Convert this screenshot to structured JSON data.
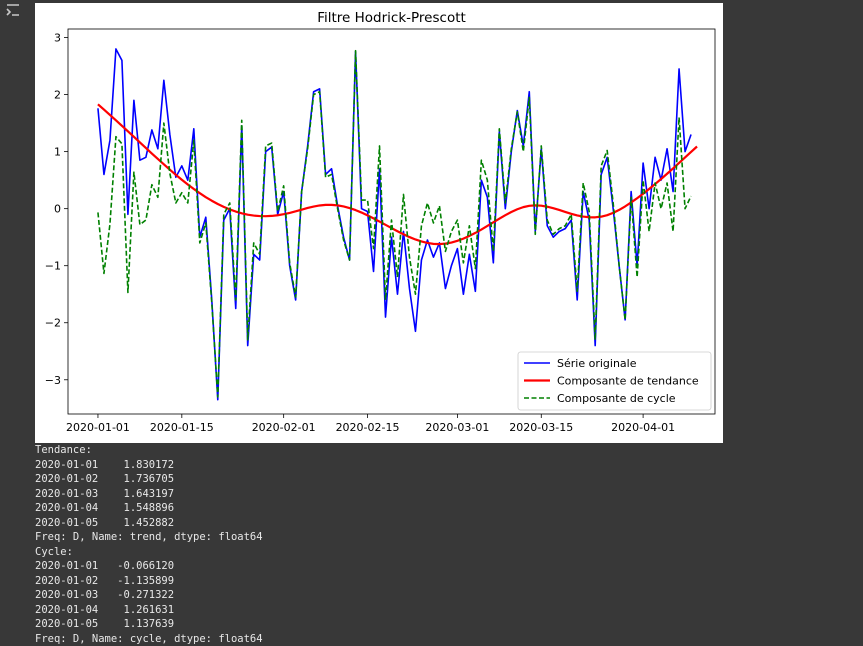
{
  "chart_data": {
    "type": "line",
    "title": "Filtre Hodrick-Prescott",
    "xlabel": "",
    "ylabel": "",
    "x_start": "2020-01-01",
    "x_ticks": [
      "2020-01-01",
      "2020-01-15",
      "2020-02-01",
      "2020-02-15",
      "2020-03-01",
      "2020-03-15",
      "2020-04-01"
    ],
    "y_ticks": [
      -3,
      -2,
      -1,
      0,
      1,
      2,
      3
    ],
    "ylim": [
      -3.6,
      3.15
    ],
    "xlim": [
      "2019-12-27",
      "2020-04-13"
    ],
    "grid": false,
    "legend_position": "lower right",
    "series": [
      {
        "name": "Série originale",
        "color": "#0000ff",
        "style": "solid",
        "values": [
          1.76,
          0.6,
          1.2,
          2.8,
          2.6,
          -0.1,
          1.9,
          0.85,
          0.9,
          1.38,
          1.05,
          2.25,
          1.3,
          0.55,
          0.75,
          0.5,
          1.4,
          -0.5,
          -0.15,
          -1.6,
          -3.35,
          -0.2,
          0.0,
          -1.75,
          1.45,
          -2.4,
          -0.8,
          -0.9,
          1.0,
          1.08,
          -0.1,
          0.3,
          -1.0,
          -1.6,
          0.3,
          1.1,
          2.05,
          2.1,
          0.6,
          0.7,
          0.05,
          -0.5,
          -0.9,
          2.75,
          0.0,
          -0.05,
          -1.1,
          0.7,
          -1.9,
          -0.5,
          -1.5,
          -0.4,
          -1.4,
          -2.15,
          -0.9,
          -0.55,
          -0.85,
          -0.6,
          -1.4,
          -1.0,
          -0.7,
          -1.5,
          -0.8,
          -1.45,
          0.5,
          0.2,
          -0.95,
          1.35,
          0.0,
          1.0,
          1.72,
          1.1,
          2.05,
          -0.4,
          1.05,
          -0.3,
          -0.5,
          -0.4,
          -0.35,
          -0.2,
          -1.6,
          0.3,
          -0.2,
          -2.4,
          0.6,
          0.9,
          0.0,
          -1.0,
          -1.95,
          0.3,
          -1.0,
          0.8,
          0.0,
          0.9,
          0.5,
          1.05,
          0.3,
          2.45,
          1.0,
          1.3
        ]
      },
      {
        "name": "Composante de tendance",
        "color": "#ff0000",
        "style": "solid",
        "values": [
          1.83,
          1.737,
          1.643,
          1.549,
          1.453,
          1.356,
          1.259,
          1.161,
          1.064,
          0.967,
          0.871,
          0.777,
          0.684,
          0.594,
          0.507,
          0.424,
          0.345,
          0.271,
          0.202,
          0.139,
          0.082,
          0.031,
          -0.013,
          -0.05,
          -0.081,
          -0.105,
          -0.121,
          -0.13,
          -0.132,
          -0.127,
          -0.115,
          -0.097,
          -0.074,
          -0.047,
          -0.017,
          0.012,
          0.037,
          0.056,
          0.066,
          0.067,
          0.058,
          0.039,
          0.011,
          -0.025,
          -0.068,
          -0.117,
          -0.17,
          -0.226,
          -0.283,
          -0.34,
          -0.396,
          -0.449,
          -0.498,
          -0.54,
          -0.575,
          -0.601,
          -0.617,
          -0.621,
          -0.613,
          -0.594,
          -0.564,
          -0.525,
          -0.478,
          -0.425,
          -0.366,
          -0.303,
          -0.239,
          -0.175,
          -0.114,
          -0.058,
          -0.01,
          0.027,
          0.05,
          0.058,
          0.052,
          0.034,
          0.008,
          -0.023,
          -0.057,
          -0.09,
          -0.118,
          -0.139,
          -0.151,
          -0.152,
          -0.14,
          -0.114,
          -0.074,
          -0.022,
          0.04,
          0.109,
          0.183,
          0.262,
          0.345,
          0.431,
          0.52,
          0.612,
          0.706,
          0.802,
          0.898,
          0.995,
          1.09
        ]
      },
      {
        "name": "Composante de cycle",
        "color": "#008000",
        "style": "dashed",
        "values": [
          -0.066,
          -1.136,
          -0.271,
          1.262,
          1.138,
          -1.47,
          0.64,
          -0.28,
          -0.2,
          0.42,
          0.2,
          1.5,
          0.62,
          0.1,
          0.28,
          0.1,
          1.2,
          -0.6,
          -0.25,
          -1.65,
          -3.3,
          -0.1,
          0.1,
          -1.6,
          1.55,
          -2.3,
          -0.6,
          -0.8,
          1.1,
          1.15,
          -0.05,
          0.4,
          -0.95,
          -1.55,
          0.3,
          1.05,
          2.0,
          2.05,
          0.55,
          0.6,
          0.0,
          -0.55,
          -0.9,
          2.77,
          0.15,
          0.15,
          -0.7,
          1.1,
          -1.6,
          -0.2,
          -1.2,
          0.25,
          -0.85,
          -1.5,
          -0.3,
          0.1,
          -0.25,
          0.05,
          -0.75,
          -0.4,
          -0.2,
          -0.95,
          -0.3,
          -1.05,
          0.85,
          0.5,
          -0.75,
          1.4,
          0.1,
          1.05,
          1.7,
          1.0,
          1.95,
          -0.45,
          1.1,
          -0.2,
          -0.45,
          -0.35,
          -0.3,
          -0.1,
          -1.45,
          0.45,
          -0.05,
          -2.3,
          0.75,
          1.02,
          0.1,
          -1.0,
          -1.95,
          0.2,
          -1.2,
          0.5,
          -0.4,
          0.45,
          0.0,
          0.45,
          -0.4,
          1.6,
          0.0,
          0.22
        ]
      }
    ]
  },
  "output": {
    "lines": [
      "Tendance:",
      "2020-01-01    1.830172",
      "2020-01-02    1.736705",
      "2020-01-03    1.643197",
      "2020-01-04    1.548896",
      "2020-01-05    1.452882",
      "Freq: D, Name: trend, dtype: float64",
      "Cycle:",
      "2020-01-01   -0.066120",
      "2020-01-02   -1.135899",
      "2020-01-03   -0.271322",
      "2020-01-04    1.261631",
      "2020-01-05    1.137639",
      "Freq: D, Name: cycle, dtype: float64"
    ]
  }
}
